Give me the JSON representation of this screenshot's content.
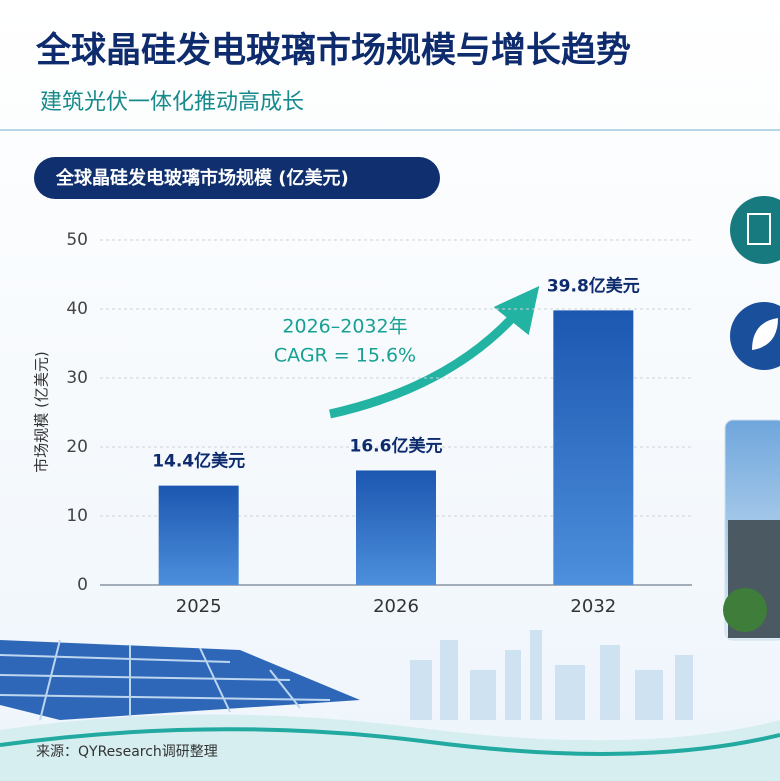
{
  "chart_data": {
    "type": "bar",
    "title": "全球晶硅发电玻璃市场规模与增长趋势",
    "subtitle": "建筑光伏一体化推动高成长",
    "chart_title": "全球晶硅发电玻璃市场规模 (亿美元)",
    "y_label": "市场规模 (亿美元)",
    "categories": [
      "2025",
      "2026",
      "2032"
    ],
    "values": [
      14.4,
      16.6,
      39.8
    ],
    "value_labels": [
      "14.4亿美元",
      "16.6亿美元",
      "39.8亿美元"
    ],
    "color": "#2a6cc4",
    "ylim": [
      0,
      50
    ],
    "yticks": [
      0,
      10,
      20,
      30,
      40,
      50
    ],
    "grid": true,
    "annotations": [
      "2026–2032年",
      "CAGR = 15.6%"
    ],
    "source": "来源：QYResearch调研整理"
  }
}
